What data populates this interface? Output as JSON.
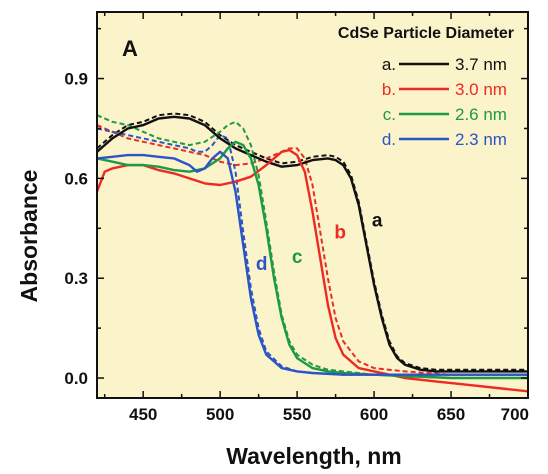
{
  "panel_label": "A",
  "legend_title": "CdSe Particle Diameter",
  "colors": {
    "background": "#fbf3c9",
    "frame": "#111111"
  },
  "chart_data": {
    "type": "line",
    "xlabel": "Wavelength, nm",
    "ylabel": "Absorbance",
    "xlim": [
      420,
      700
    ],
    "ylim": [
      -0.06,
      1.1
    ],
    "xticks": [
      450,
      500,
      550,
      600,
      650,
      700
    ],
    "yticks": [
      0.0,
      0.3,
      0.6,
      0.9
    ],
    "xtick_labels": [
      "450",
      "500",
      "550",
      "600",
      "650",
      "700"
    ],
    "ytick_labels": [
      "0.0",
      "0.3",
      "0.6",
      "0.9"
    ],
    "legend_position": "top-right",
    "series": [
      {
        "name": "3.7 nm",
        "letter": "a.",
        "curve_label": "a",
        "color": "#111111",
        "label_at": [
          602,
          0.455
        ],
        "x": [
          420,
          430,
          440,
          450,
          460,
          470,
          480,
          490,
          500,
          510,
          520,
          530,
          540,
          550,
          560,
          570,
          575,
          580,
          585,
          590,
          595,
          600,
          605,
          610,
          615,
          620,
          630,
          640,
          650,
          660,
          680,
          700
        ],
        "y": [
          0.68,
          0.72,
          0.75,
          0.76,
          0.78,
          0.785,
          0.78,
          0.76,
          0.72,
          0.69,
          0.67,
          0.65,
          0.635,
          0.64,
          0.655,
          0.66,
          0.655,
          0.64,
          0.6,
          0.52,
          0.4,
          0.28,
          0.18,
          0.1,
          0.06,
          0.04,
          0.025,
          0.02,
          0.02,
          0.02,
          0.02,
          0.02
        ]
      },
      {
        "name": "3.0 nm",
        "letter": "b.",
        "curve_label": "b",
        "color": "#ee2a24",
        "label_at": [
          578,
          0.42
        ],
        "x": [
          420,
          425,
          430,
          440,
          450,
          460,
          470,
          480,
          490,
          500,
          510,
          520,
          530,
          540,
          545,
          550,
          555,
          560,
          565,
          570,
          575,
          580,
          590,
          600,
          610,
          620,
          640,
          660,
          680,
          700
        ],
        "y": [
          0.56,
          0.62,
          0.63,
          0.64,
          0.64,
          0.625,
          0.615,
          0.6,
          0.585,
          0.58,
          0.59,
          0.605,
          0.64,
          0.68,
          0.685,
          0.67,
          0.62,
          0.5,
          0.36,
          0.22,
          0.12,
          0.07,
          0.03,
          0.02,
          0.01,
          0.0,
          -0.01,
          -0.02,
          -0.03,
          -0.04
        ]
      },
      {
        "name": "2.6 nm",
        "letter": "c.",
        "curve_label": "c",
        "color": "#1c9a45",
        "label_at": [
          550,
          0.345
        ],
        "x": [
          420,
          430,
          440,
          450,
          460,
          470,
          480,
          490,
          500,
          505,
          510,
          515,
          520,
          525,
          530,
          535,
          540,
          545,
          550,
          560,
          570,
          580,
          600,
          650,
          700
        ],
        "y": [
          0.66,
          0.65,
          0.64,
          0.64,
          0.635,
          0.625,
          0.62,
          0.63,
          0.66,
          0.69,
          0.71,
          0.7,
          0.66,
          0.58,
          0.45,
          0.3,
          0.18,
          0.1,
          0.06,
          0.03,
          0.02,
          0.015,
          0.01,
          0.0,
          0.0
        ]
      },
      {
        "name": "2.3 nm",
        "letter": "d.",
        "curve_label": "d",
        "color": "#2b55c6",
        "label_at": [
          527,
          0.325
        ],
        "x": [
          420,
          430,
          440,
          450,
          460,
          470,
          480,
          485,
          490,
          495,
          500,
          505,
          510,
          515,
          520,
          525,
          530,
          540,
          550,
          560,
          580,
          600,
          650,
          700
        ],
        "y": [
          0.66,
          0.665,
          0.67,
          0.67,
          0.665,
          0.66,
          0.64,
          0.62,
          0.63,
          0.66,
          0.68,
          0.66,
          0.56,
          0.4,
          0.24,
          0.13,
          0.07,
          0.03,
          0.02,
          0.015,
          0.01,
          0.01,
          0.01,
          0.01
        ]
      }
    ],
    "dashed_series": [
      {
        "of": "3.7 nm",
        "color": "#111111",
        "x": [
          420,
          430,
          440,
          450,
          460,
          470,
          480,
          490,
          500,
          510,
          520,
          530,
          540,
          550,
          560,
          570,
          575,
          580,
          585,
          590,
          595,
          600,
          605,
          610,
          615,
          620,
          630,
          640,
          650,
          660,
          680,
          700
        ],
        "y": [
          0.69,
          0.73,
          0.76,
          0.77,
          0.79,
          0.795,
          0.79,
          0.77,
          0.73,
          0.7,
          0.68,
          0.66,
          0.645,
          0.65,
          0.665,
          0.67,
          0.665,
          0.65,
          0.61,
          0.53,
          0.41,
          0.29,
          0.19,
          0.11,
          0.065,
          0.045,
          0.03,
          0.025,
          0.025,
          0.025,
          0.025,
          0.025
        ]
      },
      {
        "of": "3.0 nm",
        "color": "#ee2a24",
        "x": [
          420,
          430,
          440,
          450,
          460,
          470,
          480,
          490,
          500,
          510,
          520,
          530,
          540,
          545,
          550,
          555,
          560,
          565,
          570,
          575,
          580,
          590,
          600,
          620,
          650,
          700
        ],
        "y": [
          0.76,
          0.74,
          0.72,
          0.71,
          0.7,
          0.69,
          0.68,
          0.67,
          0.65,
          0.64,
          0.645,
          0.66,
          0.68,
          0.69,
          0.69,
          0.66,
          0.58,
          0.44,
          0.3,
          0.18,
          0.11,
          0.05,
          0.03,
          0.02,
          0.01,
          0.01
        ]
      },
      {
        "of": "2.6 nm",
        "color": "#1c9a45",
        "x": [
          420,
          430,
          440,
          450,
          460,
          470,
          480,
          490,
          500,
          505,
          510,
          515,
          520,
          525,
          530,
          535,
          540,
          545,
          550,
          560,
          570,
          580,
          600,
          650,
          700
        ],
        "y": [
          0.79,
          0.77,
          0.76,
          0.74,
          0.72,
          0.71,
          0.7,
          0.71,
          0.74,
          0.76,
          0.77,
          0.75,
          0.7,
          0.61,
          0.47,
          0.32,
          0.19,
          0.11,
          0.07,
          0.04,
          0.025,
          0.02,
          0.01,
          0.0,
          0.0
        ]
      },
      {
        "of": "2.3 nm",
        "color": "#2b55c6",
        "x": [
          420,
          430,
          440,
          450,
          460,
          470,
          480,
          485,
          490,
          495,
          500,
          505,
          510,
          515,
          520,
          525,
          530,
          540,
          550,
          560,
          580,
          600,
          650,
          700
        ],
        "y": [
          0.75,
          0.74,
          0.73,
          0.72,
          0.71,
          0.7,
          0.69,
          0.68,
          0.68,
          0.7,
          0.73,
          0.72,
          0.62,
          0.44,
          0.27,
          0.15,
          0.08,
          0.035,
          0.02,
          0.015,
          0.01,
          0.01,
          0.01,
          0.01
        ]
      }
    ]
  }
}
